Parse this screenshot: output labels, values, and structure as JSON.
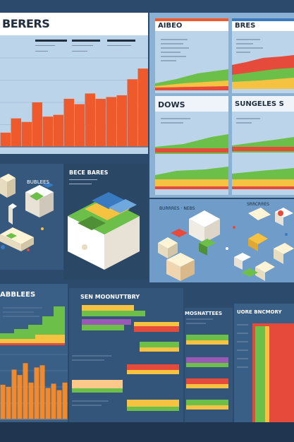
{
  "panels": {
    "top_left_title": "BERERS",
    "top_right_a_title": "AIBEO",
    "top_right_b_title": "BRES",
    "mid_right_a_title": "DOWS",
    "mid_right_b_title": "SUNGELES S",
    "iso_left_title": "BECE BARES",
    "lower_left_title": "ABBLEES",
    "lower_center_title": "SEN MOONUTTBRY",
    "lower_mid_title": "MOSNATTEES",
    "lower_right_title": "UORE BNCMORY"
  },
  "colors": {
    "background": "#2c4a6b",
    "panel_light": "#bcd4ea",
    "panel_dark": "#3a5f86",
    "orange": "#ee5a2c",
    "green": "#6cc04a",
    "yellow": "#f5c242",
    "red": "#e64a3a",
    "cream": "#fff4d6"
  },
  "chart_data": [
    {
      "type": "bar",
      "values": [
        8,
        16,
        14,
        25,
        17,
        18,
        27,
        24,
        30,
        27,
        28,
        29,
        38,
        44
      ],
      "ylim": [
        0,
        50
      ]
    },
    {
      "type": "bar",
      "values": [
        3.2,
        3.0,
        4.6,
        4.1,
        5.2,
        3.4,
        4.8,
        5.0,
        2.9,
        3.3,
        2.7,
        3.4
      ],
      "ylim": [
        0,
        6
      ]
    }
  ]
}
